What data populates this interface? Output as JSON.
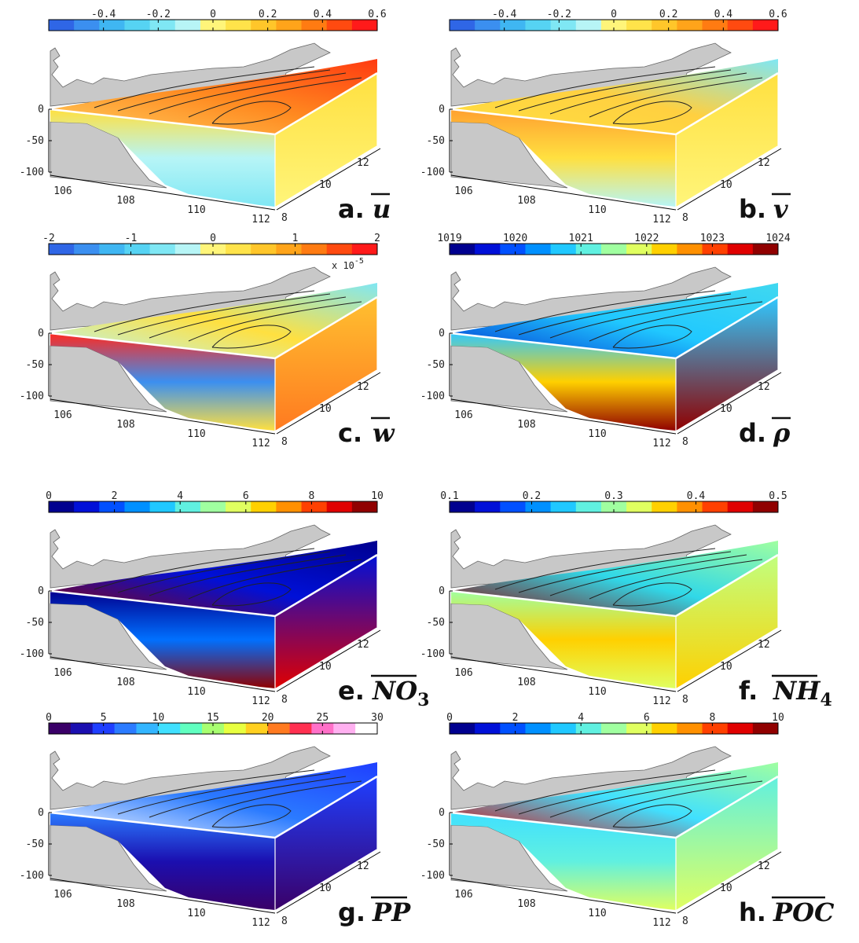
{
  "figure": {
    "panels": [
      {
        "id": "a",
        "label": "a.",
        "symbol": "u",
        "scale_note": "",
        "colorbar": {
          "ticks": [
            "-0.4",
            "-0.2",
            "0",
            "0.2",
            "0.4",
            "0.6"
          ],
          "min": -0.6,
          "max": 0.6,
          "colors": [
            "#2f66e6",
            "#3b8ff0",
            "#3fb6f2",
            "#56d3f3",
            "#7fe7f4",
            "#b7f5f6",
            "#fff57a",
            "#ffe34a",
            "#ffc62a",
            "#ffa41a",
            "#ff7b12",
            "#ff4a10",
            "#ff1a1a"
          ]
        }
      },
      {
        "id": "b",
        "label": "b.",
        "symbol": "v",
        "scale_note": "",
        "colorbar": {
          "ticks": [
            "-0.4",
            "-0.2",
            "0",
            "0.2",
            "0.4",
            "0.6"
          ],
          "min": -0.6,
          "max": 0.6,
          "colors": [
            "#2f66e6",
            "#3b8ff0",
            "#3fb6f2",
            "#56d3f3",
            "#7fe7f4",
            "#b7f5f6",
            "#fff57a",
            "#ffe34a",
            "#ffc62a",
            "#ffa41a",
            "#ff7b12",
            "#ff4a10",
            "#ff1a1a"
          ]
        }
      },
      {
        "id": "c",
        "label": "c.",
        "symbol": "w",
        "scale_note": "x 10^-5",
        "colorbar": {
          "ticks": [
            "-2",
            "-1",
            "0",
            "1",
            "2"
          ],
          "min": -2,
          "max": 2,
          "colors": [
            "#2f66e6",
            "#3b8ff0",
            "#3fb6f2",
            "#56d3f3",
            "#7fe7f4",
            "#b7f5f6",
            "#fff57a",
            "#ffe34a",
            "#ffc62a",
            "#ffa41a",
            "#ff7b12",
            "#ff4a10",
            "#ff1a1a"
          ]
        }
      },
      {
        "id": "d",
        "label": "d.",
        "symbol": "ρ",
        "scale_note": "",
        "colorbar": {
          "ticks": [
            "1019",
            "1020",
            "1021",
            "1022",
            "1023",
            "1024"
          ],
          "min": 1019,
          "max": 1024,
          "colors": [
            "#00008f",
            "#0010d8",
            "#0050ff",
            "#0090ff",
            "#20c8ff",
            "#60f0e0",
            "#a0ffa0",
            "#e0ff60",
            "#ffd000",
            "#ff9000",
            "#ff4000",
            "#e00000",
            "#900000"
          ]
        }
      },
      {
        "id": "e",
        "label": "e.",
        "symbol": "NO",
        "subscript": "3",
        "scale_note": "",
        "colorbar": {
          "ticks": [
            "0",
            "2",
            "4",
            "6",
            "8",
            "10"
          ],
          "min": 0,
          "max": 10,
          "colors": [
            "#00008f",
            "#0010d8",
            "#0050ff",
            "#0090ff",
            "#20c8ff",
            "#60f0e0",
            "#a0ffa0",
            "#e0ff60",
            "#ffd000",
            "#ff9000",
            "#ff4000",
            "#e00000",
            "#900000"
          ]
        }
      },
      {
        "id": "f",
        "label": "f.",
        "symbol": "NH",
        "subscript": "4",
        "scale_note": "",
        "colorbar": {
          "ticks": [
            "0.1",
            "0.2",
            "0.3",
            "0.4",
            "0.5"
          ],
          "min": 0.1,
          "max": 0.5,
          "colors": [
            "#00008f",
            "#0010d8",
            "#0050ff",
            "#0090ff",
            "#20c8ff",
            "#60f0e0",
            "#a0ffa0",
            "#e0ff60",
            "#ffd000",
            "#ff9000",
            "#ff4000",
            "#e00000",
            "#900000"
          ]
        }
      },
      {
        "id": "g",
        "label": "g.",
        "symbol": "PP",
        "scale_note": "",
        "colorbar": {
          "ticks": [
            "0",
            "5",
            "10",
            "15",
            "20",
            "25",
            "30"
          ],
          "min": 0,
          "max": 30,
          "colors": [
            "#3a0068",
            "#1b0fb0",
            "#1f3fff",
            "#2b7bff",
            "#33b5ff",
            "#40e0ff",
            "#60ffc0",
            "#a8ff70",
            "#e8ff40",
            "#ffd020",
            "#ff7a20",
            "#ff3050",
            "#ff70c8",
            "#ffb0f0",
            "#ffffff"
          ]
        }
      },
      {
        "id": "h",
        "label": "h.",
        "symbol": "POC",
        "scale_note": "",
        "colorbar": {
          "ticks": [
            "0",
            "2",
            "4",
            "6",
            "8",
            "10"
          ],
          "min": 0,
          "max": 10,
          "colors": [
            "#00008f",
            "#0010d8",
            "#0050ff",
            "#0090ff",
            "#20c8ff",
            "#60f0e0",
            "#a0ffa0",
            "#e0ff60",
            "#ffd000",
            "#ff9000",
            "#ff4000",
            "#e00000",
            "#900000"
          ]
        }
      }
    ],
    "axes": {
      "depth_ticks": [
        "0",
        "-50",
        "-100"
      ],
      "lon_ticks": [
        "106",
        "108",
        "110",
        "112"
      ],
      "lat_ticks": [
        "8",
        "10",
        "12"
      ]
    }
  },
  "chart_data": {
    "type": "heatmap",
    "description_free": true,
    "panels": [
      {
        "id": "a",
        "field": "u",
        "colorbar_range": [
          -0.6,
          0.6
        ],
        "colorbar_ticks": [
          -0.4,
          -0.2,
          0,
          0.2,
          0.4,
          0.6
        ]
      },
      {
        "id": "b",
        "field": "v",
        "colorbar_range": [
          -0.6,
          0.6
        ],
        "colorbar_ticks": [
          -0.4,
          -0.2,
          0,
          0.2,
          0.4,
          0.6
        ]
      },
      {
        "id": "c",
        "field": "w",
        "colorbar_range": [
          -2,
          2
        ],
        "colorbar_ticks": [
          -2,
          -1,
          0,
          1,
          2
        ],
        "scale": "x 10^-5"
      },
      {
        "id": "d",
        "field": "ρ",
        "colorbar_range": [
          1019,
          1024
        ],
        "colorbar_ticks": [
          1019,
          1020,
          1021,
          1022,
          1023,
          1024
        ]
      },
      {
        "id": "e",
        "field": "NO3",
        "colorbar_range": [
          0,
          10
        ],
        "colorbar_ticks": [
          0,
          2,
          4,
          6,
          8,
          10
        ]
      },
      {
        "id": "f",
        "field": "NH4",
        "colorbar_range": [
          0.1,
          0.5
        ],
        "colorbar_ticks": [
          0.1,
          0.2,
          0.3,
          0.4,
          0.5
        ]
      },
      {
        "id": "g",
        "field": "PP",
        "colorbar_range": [
          0,
          30
        ],
        "colorbar_ticks": [
          0,
          5,
          10,
          15,
          20,
          25,
          30
        ]
      },
      {
        "id": "h",
        "field": "POC",
        "colorbar_range": [
          0,
          10
        ],
        "colorbar_ticks": [
          0,
          2,
          4,
          6,
          8,
          10
        ]
      }
    ],
    "axes": {
      "depth": [
        -100,
        0
      ],
      "lon": [
        106,
        112
      ],
      "lat": [
        8,
        12
      ]
    }
  }
}
